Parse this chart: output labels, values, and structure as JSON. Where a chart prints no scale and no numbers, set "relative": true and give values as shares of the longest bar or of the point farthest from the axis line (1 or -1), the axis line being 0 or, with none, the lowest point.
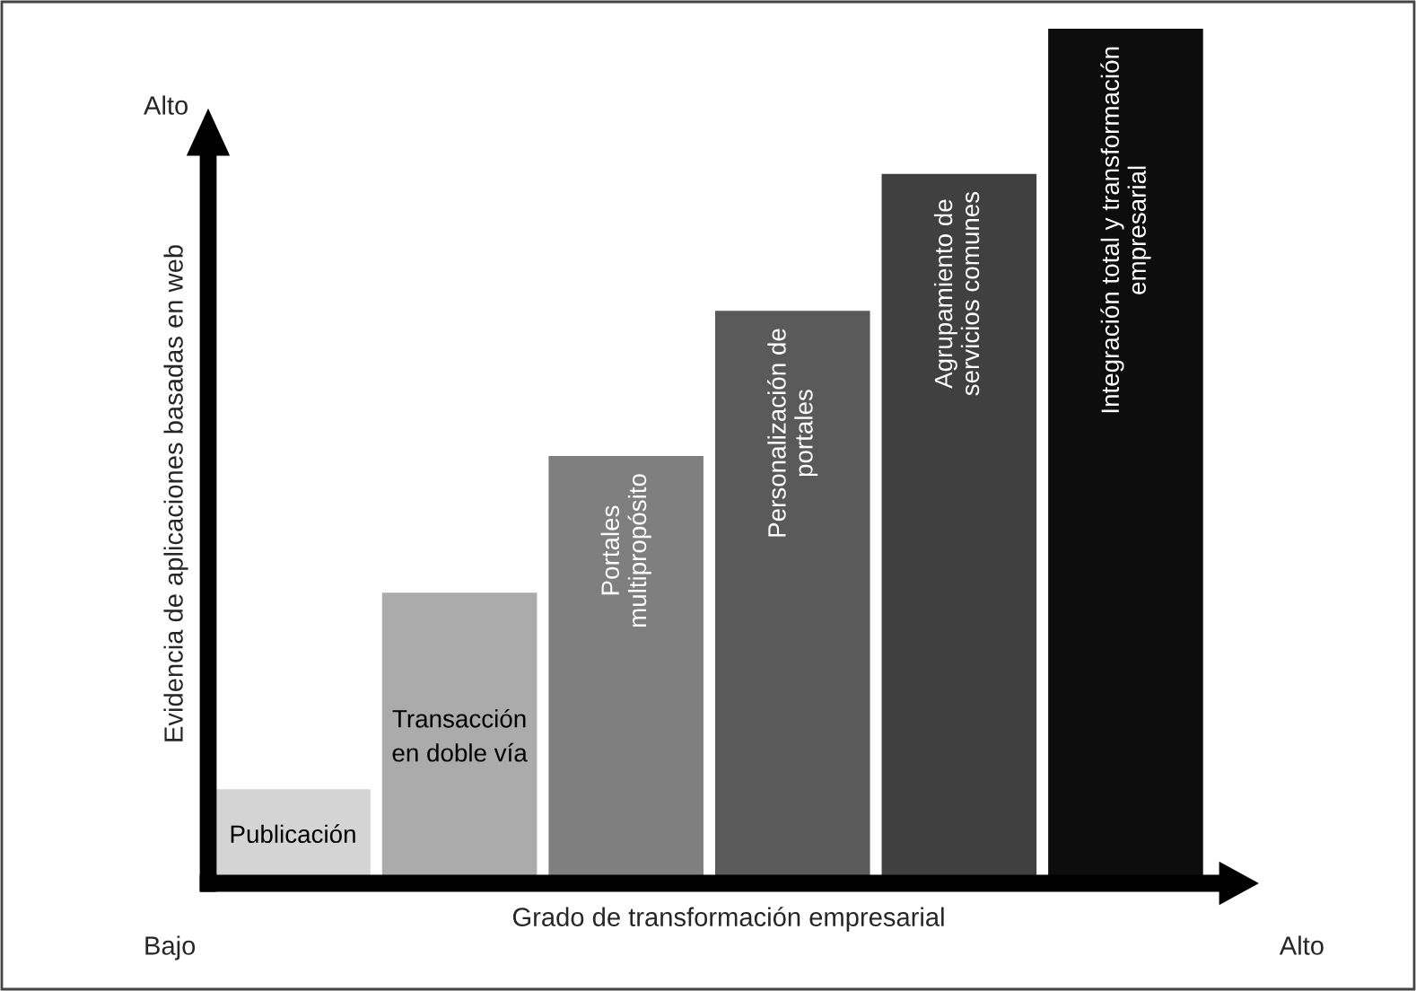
{
  "chart_data": {
    "type": "bar",
    "relative": true,
    "xlabel": "Grado de transformación empresarial",
    "ylabel": "Evidencia de aplicaciones basadas en web",
    "categories": [
      "Publicación",
      "Transacción\nen doble vía",
      "Portales\nmultipropósito",
      "Personalización de\nportales",
      "Agrupamiento de\nservicios comunes",
      "Integración total y transformación\nempresarial"
    ],
    "values": [
      0.11,
      0.34,
      0.5,
      0.67,
      0.83,
      1
    ],
    "colors": [
      "#d4d4d4",
      "#ababab",
      "#7f7f7f",
      "#5a5a5a",
      "#404040",
      "#0d0d0d"
    ],
    "annotations": [
      "Alto",
      "Bajo",
      "Alto"
    ],
    "legend": false
  }
}
